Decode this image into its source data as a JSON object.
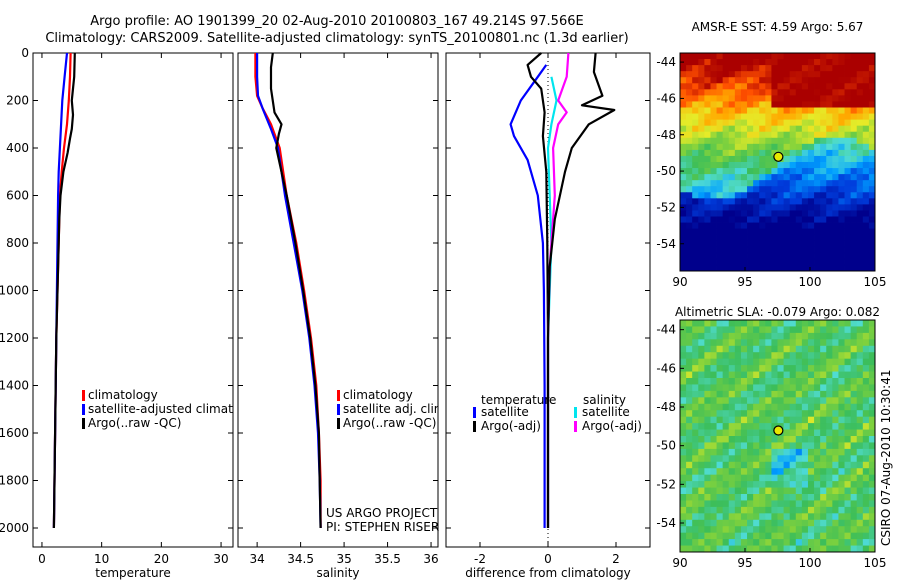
{
  "header": {
    "title_line1": "Argo profile: AO 1901399_20 02-Aug-2010 20100803_167 49.214S 97.566E",
    "title_line2": "Climatology: CARS2009. Satellite-adjusted climatology: synTS_20100801.nc (1.3d earlier)"
  },
  "colors": {
    "climatology": "#ff0000",
    "satellite": "#0000ff",
    "argo": "#000000",
    "sat_salinity": "#00e5ee",
    "argo_salinity": "#ff00ff"
  },
  "project": {
    "line1": "US ARGO PROJECT",
    "line2": "PI: STEPHEN RISER"
  },
  "credit": "CSIRO 07-Aug-2010 10:30:41",
  "chart_data": [
    {
      "id": "temperature",
      "type": "line",
      "xlabel": "temperature",
      "xlim": [
        -1.5,
        32
      ],
      "ylim": [
        0,
        2080
      ],
      "y_reversed": true,
      "xticks": [
        0,
        10,
        20,
        30
      ],
      "yticks": [
        0,
        200,
        400,
        600,
        800,
        1000,
        1200,
        1400,
        1600,
        1800,
        2000
      ],
      "legend": [
        "climatology",
        "satellite-adjusted climatolog",
        "Argo(..raw -QC)"
      ],
      "series": [
        {
          "name": "climatology",
          "color": "#ff0000",
          "points": [
            [
              4.8,
              0
            ],
            [
              4.7,
              100
            ],
            [
              4.5,
              200
            ],
            [
              4.2,
              300
            ],
            [
              3.7,
              400
            ],
            [
              3.3,
              500
            ],
            [
              3.0,
              600
            ],
            [
              2.8,
              800
            ],
            [
              2.6,
              1000
            ],
            [
              2.4,
              1200
            ],
            [
              2.3,
              1400
            ],
            [
              2.2,
              1600
            ],
            [
              2.1,
              1800
            ],
            [
              2.0,
              2000
            ]
          ]
        },
        {
          "name": "satellite-adjusted climatolog",
          "color": "#0000ff",
          "points": [
            [
              4.2,
              0
            ],
            [
              3.8,
              100
            ],
            [
              3.4,
              200
            ],
            [
              3.2,
              300
            ],
            [
              3.0,
              400
            ],
            [
              2.8,
              500
            ],
            [
              2.7,
              600
            ],
            [
              2.6,
              800
            ],
            [
              2.5,
              1000
            ],
            [
              2.4,
              1200
            ],
            [
              2.3,
              1400
            ],
            [
              2.2,
              1600
            ],
            [
              2.1,
              1800
            ],
            [
              2.0,
              2000
            ]
          ]
        },
        {
          "name": "Argo(..raw -QC)",
          "color": "#000000",
          "points": [
            [
              5.5,
              0
            ],
            [
              5.4,
              100
            ],
            [
              5.2,
              150
            ],
            [
              5.0,
              200
            ],
            [
              5.2,
              260
            ],
            [
              5.0,
              320
            ],
            [
              4.7,
              360
            ],
            [
              4.3,
              420
            ],
            [
              3.6,
              500
            ],
            [
              3.1,
              600
            ],
            [
              2.9,
              700
            ],
            [
              2.8,
              800
            ],
            [
              2.6,
              1000
            ],
            [
              2.4,
              1200
            ],
            [
              2.3,
              1400
            ],
            [
              2.2,
              1600
            ],
            [
              2.1,
              1800
            ],
            [
              2.0,
              2000
            ]
          ]
        }
      ]
    },
    {
      "id": "salinity",
      "type": "line",
      "xlabel": "salinity",
      "xlim": [
        33.78,
        36.08
      ],
      "ylim": [
        0,
        2080
      ],
      "y_reversed": true,
      "xticks": [
        34,
        34.5,
        35,
        35.5,
        36
      ],
      "legend": [
        "climatology",
        "satellite adj. clim.",
        "Argo(..raw -QC)"
      ],
      "series": [
        {
          "name": "climatology",
          "color": "#ff0000",
          "points": [
            [
              33.98,
              0
            ],
            [
              33.98,
              100
            ],
            [
              34.0,
              180
            ],
            [
              34.06,
              230
            ],
            [
              34.16,
              300
            ],
            [
              34.26,
              400
            ],
            [
              34.34,
              600
            ],
            [
              34.45,
              800
            ],
            [
              34.54,
              1000
            ],
            [
              34.62,
              1200
            ],
            [
              34.68,
              1400
            ],
            [
              34.71,
              1600
            ],
            [
              34.73,
              1800
            ],
            [
              34.73,
              2000
            ]
          ]
        },
        {
          "name": "satellite adj. clim.",
          "color": "#0000ff",
          "points": [
            [
              34.0,
              0
            ],
            [
              34.0,
              100
            ],
            [
              34.01,
              180
            ],
            [
              34.07,
              240
            ],
            [
              34.16,
              320
            ],
            [
              34.24,
              400
            ],
            [
              34.32,
              600
            ],
            [
              34.42,
              800
            ],
            [
              34.52,
              1000
            ],
            [
              34.6,
              1200
            ],
            [
              34.66,
              1400
            ],
            [
              34.7,
              1600
            ],
            [
              34.72,
              1800
            ],
            [
              34.73,
              2000
            ]
          ]
        },
        {
          "name": "Argo(..raw -QC)",
          "color": "#000000",
          "points": [
            [
              34.18,
              0
            ],
            [
              34.16,
              60
            ],
            [
              34.16,
              150
            ],
            [
              34.2,
              250
            ],
            [
              34.28,
              300
            ],
            [
              34.25,
              340
            ],
            [
              34.22,
              400
            ],
            [
              34.28,
              500
            ],
            [
              34.34,
              600
            ],
            [
              34.44,
              800
            ],
            [
              34.53,
              1000
            ],
            [
              34.61,
              1200
            ],
            [
              34.67,
              1400
            ],
            [
              34.71,
              1600
            ],
            [
              34.72,
              1800
            ],
            [
              34.73,
              2000
            ]
          ]
        }
      ]
    },
    {
      "id": "difference",
      "type": "line",
      "xlabel": "difference from climatology",
      "xlim": [
        -3,
        3
      ],
      "ylim": [
        0,
        2080
      ],
      "y_reversed": true,
      "xticks": [
        -2,
        0,
        2
      ],
      "legend_titles": [
        "temperature",
        "salinity"
      ],
      "legend": [
        "satellite",
        "Argo(-adj)",
        "satellite",
        "Argo(-adj)"
      ],
      "series": [
        {
          "name": "temperature satellite",
          "color": "#0000ff",
          "points": [
            [
              -0.05,
              50
            ],
            [
              -0.3,
              100
            ],
            [
              -0.8,
              200
            ],
            [
              -1.1,
              300
            ],
            [
              -1.0,
              350
            ],
            [
              -0.6,
              450
            ],
            [
              -0.3,
              600
            ],
            [
              -0.15,
              800
            ],
            [
              -0.12,
              1000
            ],
            [
              -0.1,
              1400
            ],
            [
              -0.1,
              1800
            ],
            [
              -0.1,
              2000
            ]
          ]
        },
        {
          "name": "temperature Argo(-adj)",
          "color": "#000000",
          "points": [
            [
              -0.2,
              0
            ],
            [
              -0.6,
              50
            ],
            [
              -0.5,
              100
            ],
            [
              -0.2,
              150
            ],
            [
              -0.1,
              250
            ],
            [
              -0.15,
              350
            ],
            [
              -0.05,
              500
            ],
            [
              -0.02,
              800
            ],
            [
              0,
              1200
            ],
            [
              0,
              2000
            ]
          ]
        },
        {
          "name": "salinity satellite",
          "color": "#00e5ee",
          "points": [
            [
              0.1,
              100
            ],
            [
              0.25,
              200
            ],
            [
              0.1,
              300
            ],
            [
              0.0,
              400
            ],
            [
              0.05,
              600
            ],
            [
              0.1,
              800
            ],
            [
              0.05,
              1000
            ],
            [
              0.0,
              1200
            ],
            [
              0.0,
              1600
            ],
            [
              0.0,
              2000
            ]
          ]
        },
        {
          "name": "salinity Argo(-adj)",
          "color": "#ff00ff",
          "points": [
            [
              0.6,
              0
            ],
            [
              0.55,
              100
            ],
            [
              0.3,
              200
            ],
            [
              0.55,
              250
            ],
            [
              0.3,
              300
            ],
            [
              0.15,
              400
            ],
            [
              0.2,
              600
            ],
            [
              0.05,
              900
            ],
            [
              0.0,
              1200
            ],
            [
              0.0,
              2000
            ]
          ]
        },
        {
          "name": "salinity Argo raw",
          "color": "#000000",
          "points": [
            [
              1.4,
              0
            ],
            [
              1.35,
              80
            ],
            [
              1.6,
              180
            ],
            [
              1.0,
              220
            ],
            [
              1.95,
              240
            ],
            [
              1.2,
              300
            ],
            [
              0.7,
              400
            ],
            [
              0.5,
              500
            ],
            [
              0.2,
              700
            ],
            [
              0.05,
              900
            ],
            [
              0.0,
              1200
            ],
            [
              0.0,
              2000
            ]
          ]
        }
      ]
    }
  ],
  "maps": [
    {
      "id": "sst",
      "title": "AMSR-E SST: 4.59 Argo: 5.67",
      "lon_ticks": [
        90,
        95,
        100,
        105
      ],
      "lat_ticks": [
        -44,
        -46,
        -48,
        -50,
        -52,
        -54
      ],
      "xlim": [
        90,
        105
      ],
      "ylim": [
        -55.5,
        -43.5
      ],
      "float_lon": 97.566,
      "float_lat": -49.214,
      "palette": "sst"
    },
    {
      "id": "sla",
      "title": "Altimetric SLA: -0.079 Argo: 0.082",
      "lon_ticks": [
        90,
        95,
        100,
        105
      ],
      "lat_ticks": [
        -44,
        -46,
        -48,
        -50,
        -52,
        -54
      ],
      "xlim": [
        90,
        105
      ],
      "ylim": [
        -55.5,
        -43.5
      ],
      "float_lon": 97.566,
      "float_lat": -49.214,
      "palette": "sla"
    }
  ]
}
